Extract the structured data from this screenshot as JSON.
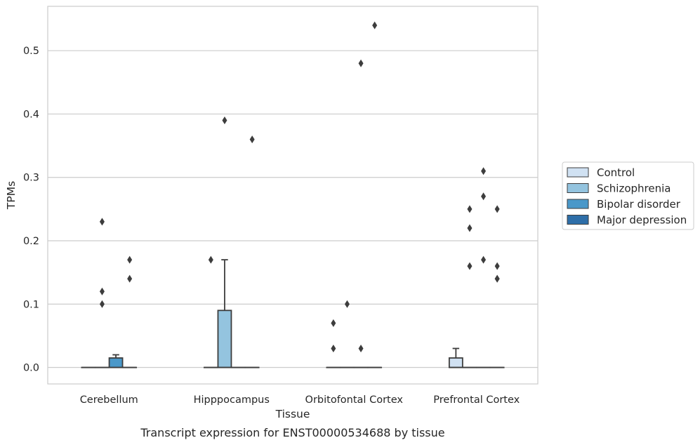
{
  "chart_data": {
    "type": "box",
    "title": "",
    "caption": "Transcript expression for ENST00000534688 by tissue",
    "xlabel": "Tissue",
    "ylabel": "TPMs",
    "ylim": [
      -0.026,
      0.57
    ],
    "yticks": [
      "0.0",
      "0.1",
      "0.2",
      "0.3",
      "0.4",
      "0.5"
    ],
    "ytick_values": [
      0.0,
      0.1,
      0.2,
      0.3,
      0.4,
      0.5
    ],
    "grid": "horizontal",
    "legend_position": "right",
    "categories": [
      "Cerebellum",
      "Hipppocampus",
      "Orbitofontal Cortex",
      "Prefrontal Cortex"
    ],
    "series": [
      {
        "name": "Control",
        "color": "#d0e1f2",
        "boxes": [
          {
            "min": 0,
            "q1": 0,
            "median": 0,
            "q3": 0,
            "max": 0,
            "outliers": []
          },
          {
            "min": 0,
            "q1": 0,
            "median": 0,
            "q3": 0,
            "max": 0,
            "outliers": [
              0.17
            ]
          },
          {
            "min": 0,
            "q1": 0,
            "median": 0,
            "q3": 0,
            "max": 0,
            "outliers": [
              0.03,
              0.07
            ]
          },
          {
            "min": 0,
            "q1": 0,
            "median": 0,
            "q3": 0.015,
            "max": 0.03,
            "outliers": []
          }
        ]
      },
      {
        "name": "Schizophrenia",
        "color": "#94c4df",
        "boxes": [
          {
            "min": 0,
            "q1": 0,
            "median": 0,
            "q3": 0,
            "max": 0,
            "outliers": [
              0.1,
              0.12,
              0.23
            ]
          },
          {
            "min": 0,
            "q1": 0,
            "median": 0,
            "q3": 0.09,
            "max": 0.17,
            "outliers": [
              0.39
            ]
          },
          {
            "min": 0,
            "q1": 0,
            "median": 0,
            "q3": 0,
            "max": 0,
            "outliers": [
              0.1
            ]
          },
          {
            "min": 0,
            "q1": 0,
            "median": 0,
            "q3": 0,
            "max": 0,
            "outliers": [
              0.16,
              0.22,
              0.25
            ]
          }
        ]
      },
      {
        "name": "Bipolar disorder",
        "color": "#4a98c9",
        "boxes": [
          {
            "min": 0,
            "q1": 0,
            "median": 0,
            "q3": 0.015,
            "max": 0.02,
            "outliers": []
          },
          {
            "min": 0,
            "q1": 0,
            "median": 0,
            "q3": 0,
            "max": 0,
            "outliers": []
          },
          {
            "min": 0,
            "q1": 0,
            "median": 0,
            "q3": 0,
            "max": 0,
            "outliers": [
              0.03,
              0.48
            ]
          },
          {
            "min": 0,
            "q1": 0,
            "median": 0,
            "q3": 0,
            "max": 0,
            "outliers": [
              0.17,
              0.27,
              0.31
            ]
          }
        ]
      },
      {
        "name": "Major depression",
        "color": "#2e6ea8",
        "boxes": [
          {
            "min": 0,
            "q1": 0,
            "median": 0,
            "q3": 0,
            "max": 0,
            "outliers": [
              0.14,
              0.17
            ]
          },
          {
            "min": 0,
            "q1": 0,
            "median": 0,
            "q3": 0,
            "max": 0,
            "outliers": [
              0.36
            ]
          },
          {
            "min": 0,
            "q1": 0,
            "median": 0,
            "q3": 0,
            "max": 0,
            "outliers": [
              0.54
            ]
          },
          {
            "min": 0,
            "q1": 0,
            "median": 0,
            "q3": 0,
            "max": 0,
            "outliers": [
              0.14,
              0.14,
              0.16,
              0.25
            ]
          }
        ]
      }
    ]
  }
}
